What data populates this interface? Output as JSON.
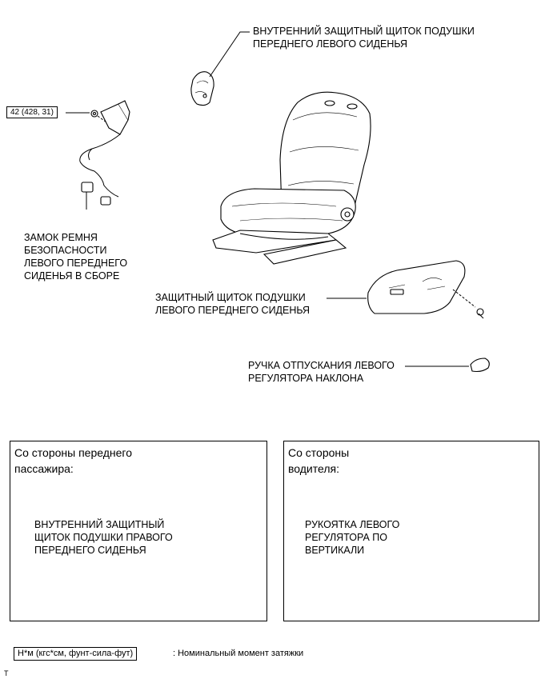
{
  "labels": {
    "inner_cover_left": "ВНУТРЕННИЙ ЗАЩИТНЫЙ ЩИТОК ПОДУШКИ\nПЕРЕДНЕГО ЛЕВОГО СИДЕНЬЯ",
    "torque_value": "42 (428, 31)",
    "buckle": "ЗАМОК РЕМНЯ\nБЕЗОПАСНОСТИ\nЛЕВОГО ПЕРЕДНЕГО\nСИДЕНЬЯ В СБОРЕ",
    "outer_cover_left": "ЗАЩИТНЫЙ ЩИТОК ПОДУШКИ\nЛЕВОГО ПЕРЕДНЕГО СИДЕНЬЯ",
    "recliner_knob": "РУЧКА ОТПУСКАНИЯ ЛЕВОГО\nРЕГУЛЯТОРА НАКЛОНА"
  },
  "panels": {
    "passenger": {
      "title": "Со стороны переднего\nпассажира:",
      "label": "ВНУТРЕННИЙ ЗАЩИТНЫЙ\nЩИТОК ПОДУШКИ ПРАВОГО\nПЕРЕДНЕГО СИДЕНЬЯ"
    },
    "driver": {
      "title": "Со стороны\nводителя:",
      "label": "РУКОЯТКА ЛЕВОГО\nРЕГУЛЯТОРА ПО\nВЕРТИКАЛИ"
    }
  },
  "legend": {
    "unit": "Н*м (кгс*см, фунт-сила-фут)",
    "description": ": Номинальный момент затяжки"
  },
  "footer_mark": "T"
}
